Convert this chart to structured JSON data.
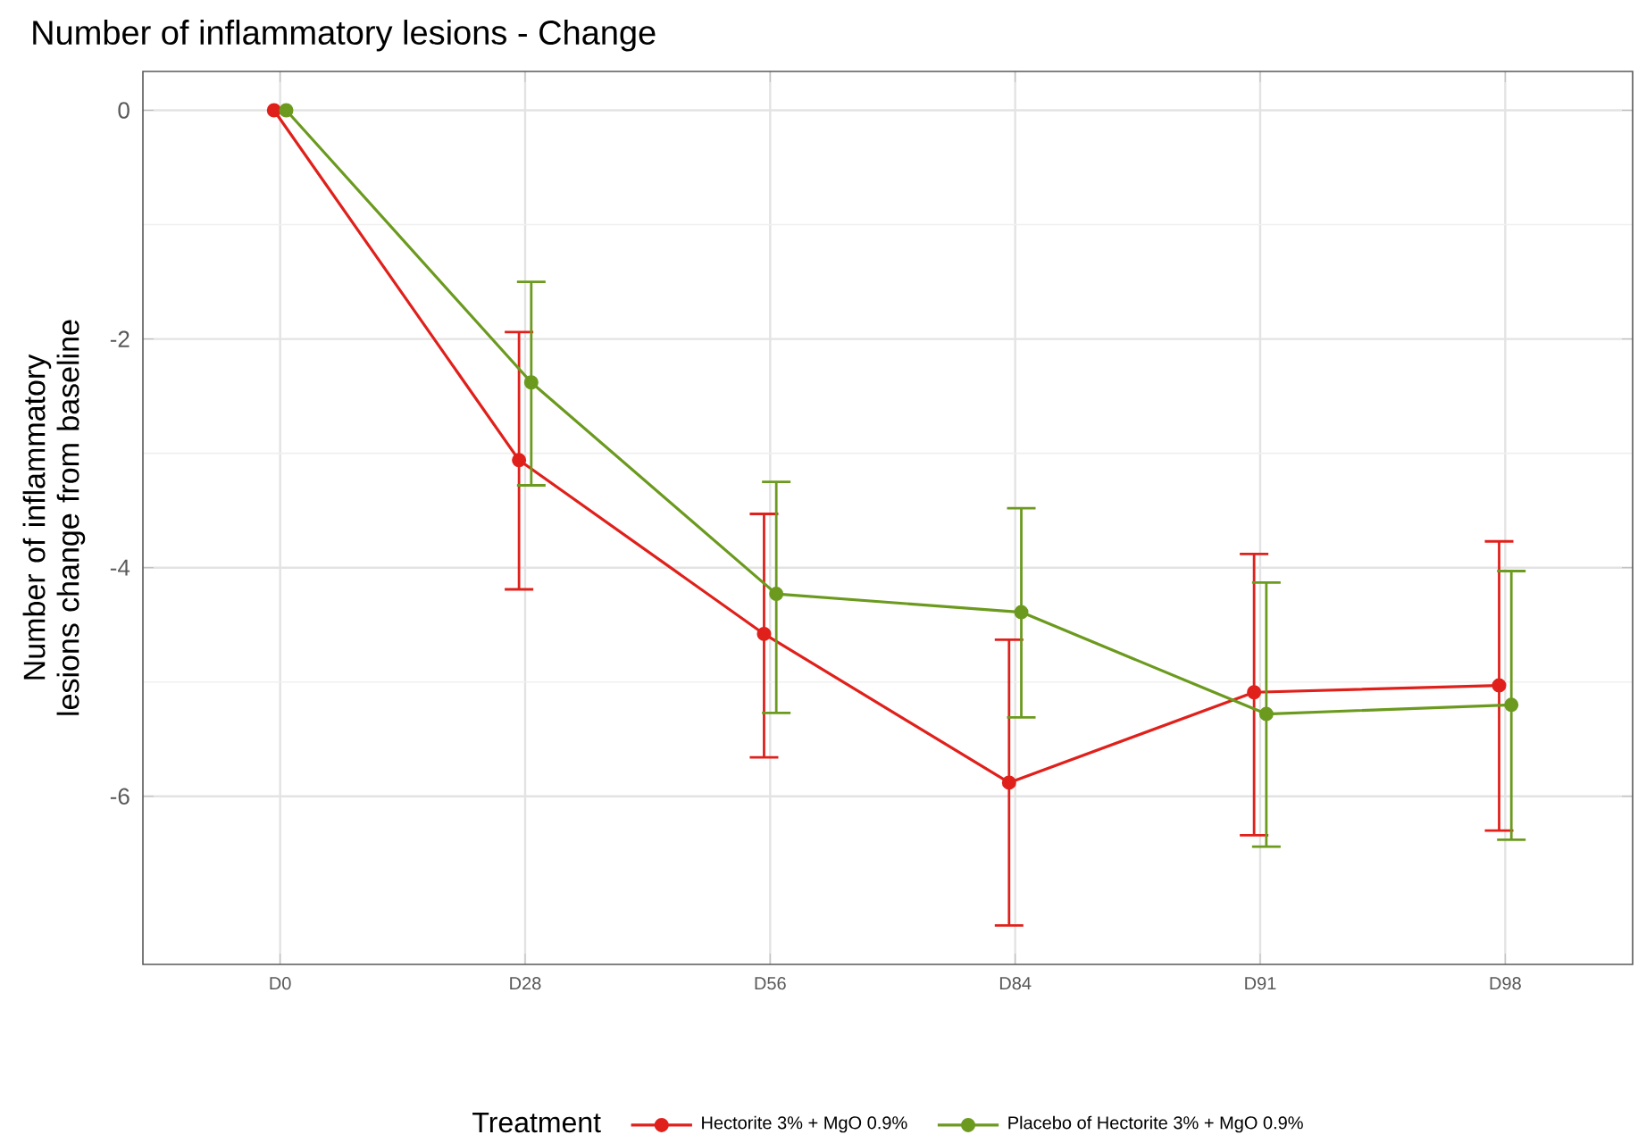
{
  "chart_data": {
    "type": "line",
    "title": "Number of inflammatory lesions - Change",
    "xlabel": null,
    "ylabel": "Number of inflammatory lesions change from baseline",
    "legend_title": "Treatment",
    "categories": [
      "D0",
      "D28",
      "D56",
      "D84",
      "D91",
      "D98"
    ],
    "ylim": [
      -7.47,
      0.34
    ],
    "yticks": [
      -6,
      -4,
      -2,
      0
    ],
    "grid": true,
    "legend": "bottom",
    "marker": "circle",
    "line_style": "solid",
    "series": [
      {
        "name": "Hectorite 3% + MgO 0.9%",
        "color": "#e0201b",
        "values": [
          0,
          -3.06,
          -4.58,
          -5.88,
          -5.09,
          -5.03
        ],
        "errors": [
          null,
          [
            -4.19,
            -1.94
          ],
          [
            -5.66,
            -3.53
          ],
          [
            -7.13,
            -4.63
          ],
          [
            -6.34,
            -3.88
          ],
          [
            -6.3,
            -3.77
          ]
        ]
      },
      {
        "name": "Placebo of Hectorite 3% + MgO 0.9%",
        "color": "#6b9a1e",
        "values": [
          0,
          -2.38,
          -4.23,
          -4.39,
          -5.28,
          -5.2
        ],
        "errors": [
          null,
          [
            -3.28,
            -1.5
          ],
          [
            -5.27,
            -3.25
          ],
          [
            -5.31,
            -3.48
          ],
          [
            -6.44,
            -4.13
          ],
          [
            -6.38,
            -4.03
          ]
        ]
      }
    ]
  }
}
